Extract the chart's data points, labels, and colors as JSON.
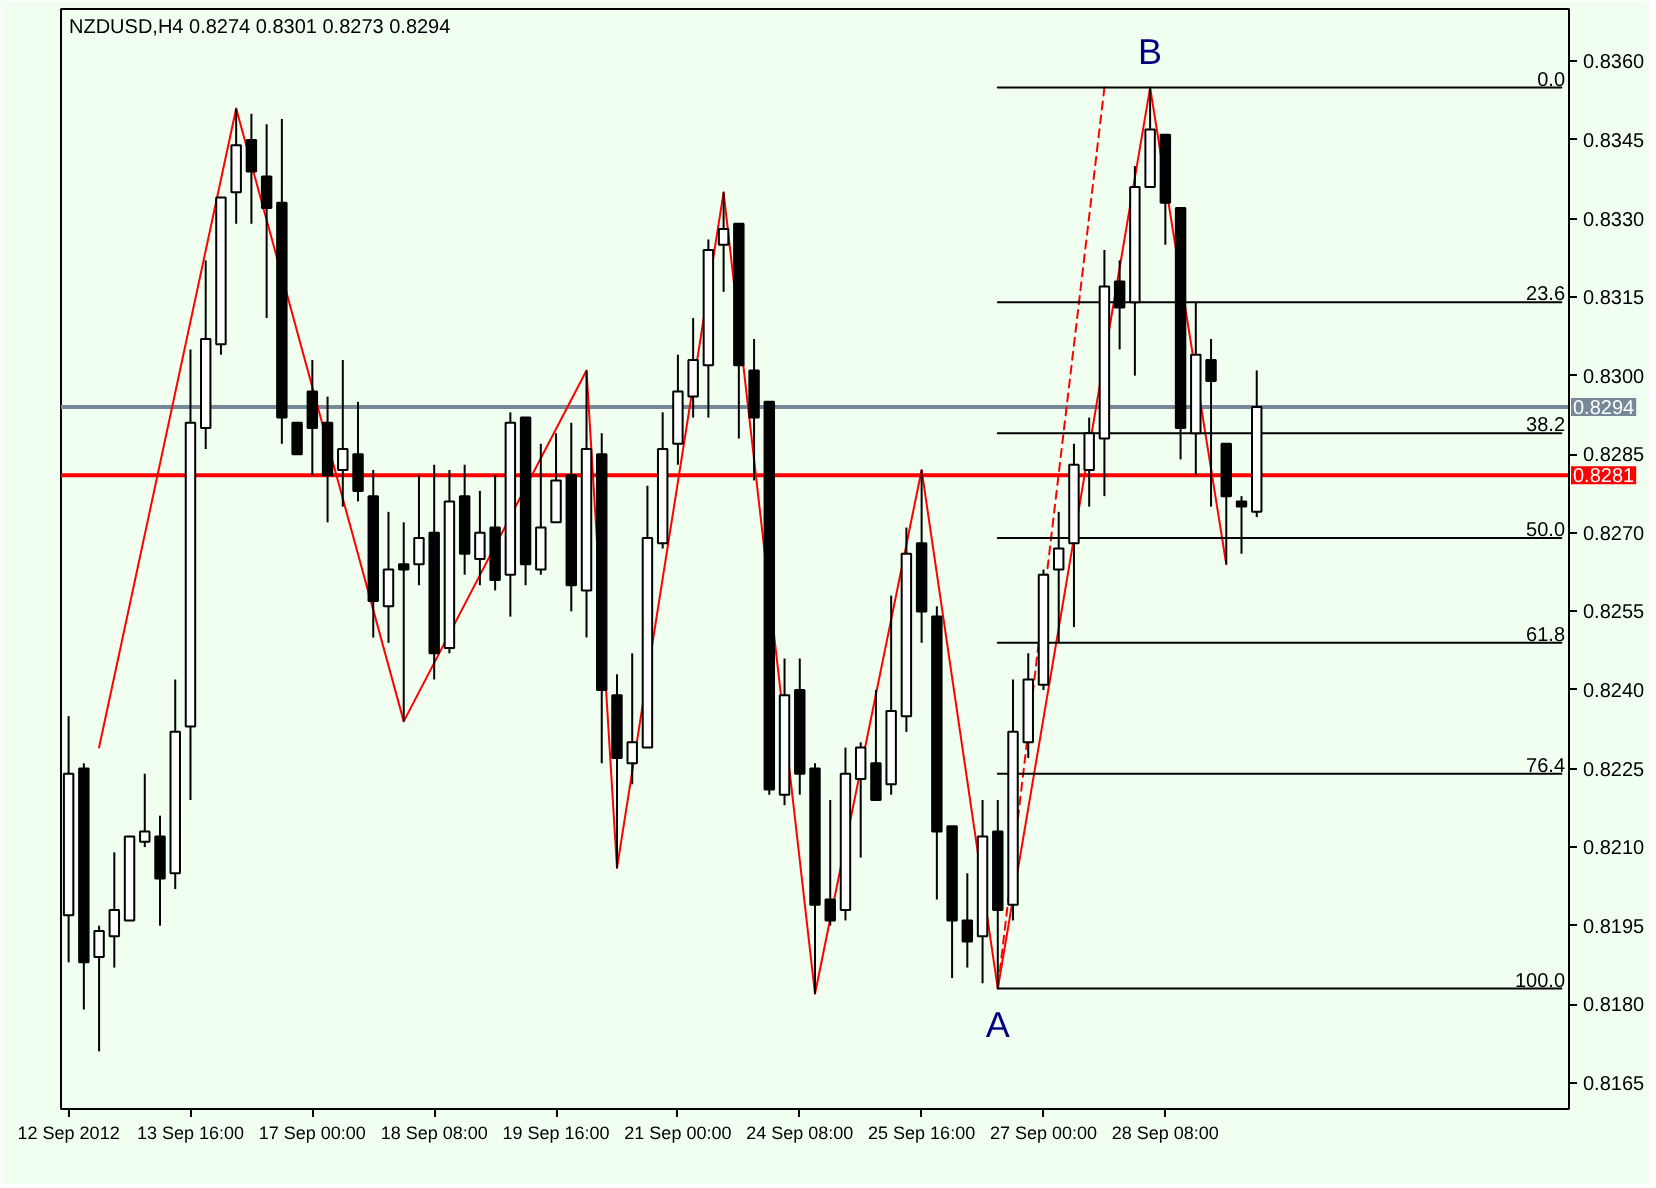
{
  "chart_data": {
    "type": "candlestick",
    "title": "NZDUSD,H4 0.8274 0.8301 0.8273 0.8294",
    "categories": [
      "12 Sep 2012",
      null,
      null,
      null,
      null,
      null,
      null,
      null,
      "13 Sep 16:00",
      null,
      null,
      null,
      null,
      null,
      null,
      null,
      "17 Sep 00:00",
      null,
      null,
      null,
      null,
      null,
      null,
      null,
      "18 Sep 08:00",
      null,
      null,
      null,
      null,
      null,
      null,
      null,
      "19 Sep 16:00",
      null,
      null,
      null,
      null,
      null,
      null,
      null,
      "21 Sep 00:00",
      null,
      null,
      null,
      null,
      null,
      null,
      null,
      "24 Sep 08:00",
      null,
      null,
      null,
      null,
      null,
      null,
      null,
      "25 Sep 16:00",
      null,
      null,
      null,
      null,
      null,
      null,
      null,
      "27 Sep 00:00",
      null,
      null,
      null,
      null,
      null,
      null,
      null,
      "28 Sep 08:00",
      null,
      null,
      null,
      null,
      null,
      null,
      null,
      null,
      null,
      null,
      null,
      null,
      null,
      null,
      null,
      null,
      null,
      null,
      null,
      null,
      null,
      null,
      null,
      null,
      null,
      null
    ],
    "ohlc": [
      [
        0.8197,
        0.8235,
        0.8188,
        0.8224
      ],
      [
        0.8225,
        0.8226,
        0.8179,
        0.8188
      ],
      [
        0.8189,
        0.8195,
        0.8171,
        0.8194
      ],
      [
        0.8193,
        0.8209,
        0.8187,
        0.8198
      ],
      [
        0.8196,
        0.8212,
        0.8196,
        0.8212
      ],
      [
        0.8211,
        0.8224,
        0.821,
        0.8213
      ],
      [
        0.8212,
        0.8216,
        0.8195,
        0.8204
      ],
      [
        0.8205,
        0.8242,
        0.8202,
        0.8232
      ],
      [
        0.8233,
        0.8305,
        0.8219,
        0.8291
      ],
      [
        0.829,
        0.8322,
        0.8286,
        0.8307
      ],
      [
        0.8306,
        0.8334,
        0.8304,
        0.8334
      ],
      [
        0.8335,
        0.8351,
        0.8329,
        0.8344
      ],
      [
        0.8345,
        0.835,
        0.8329,
        0.8339
      ],
      [
        0.8338,
        0.8348,
        0.8311,
        0.8332
      ],
      [
        0.8333,
        0.8349,
        0.8287,
        0.8292
      ],
      [
        0.8291,
        0.8291,
        0.8285,
        0.8285
      ],
      [
        0.8297,
        0.8303,
        0.8281,
        0.829
      ],
      [
        0.8291,
        0.8296,
        0.8272,
        0.8281
      ],
      [
        0.8282,
        0.8303,
        0.8275,
        0.8286
      ],
      [
        0.8285,
        0.8295,
        0.8276,
        0.8278
      ],
      [
        0.8277,
        0.8282,
        0.825,
        0.8257
      ],
      [
        0.8256,
        0.8274,
        0.8249,
        0.8263
      ],
      [
        0.8264,
        0.8272,
        0.8234,
        0.8263
      ],
      [
        0.8264,
        0.8281,
        0.826,
        0.8269
      ],
      [
        0.827,
        0.8283,
        0.8242,
        0.8247
      ],
      [
        0.8248,
        0.8282,
        0.8247,
        0.8276
      ],
      [
        0.8277,
        0.8283,
        0.8262,
        0.8266
      ],
      [
        0.8265,
        0.8278,
        0.826,
        0.827
      ],
      [
        0.8271,
        0.8281,
        0.8259,
        0.8261
      ],
      [
        0.8262,
        0.8293,
        0.8254,
        0.8291
      ],
      [
        0.8292,
        0.8292,
        0.826,
        0.8264
      ],
      [
        0.8263,
        0.8287,
        0.8262,
        0.8271
      ],
      [
        0.8272,
        0.8289,
        0.8272,
        0.828
      ],
      [
        0.8281,
        0.8291,
        0.8255,
        0.826
      ],
      [
        0.8259,
        0.8301,
        0.825,
        0.8286
      ],
      [
        0.8285,
        0.8289,
        0.8226,
        0.824
      ],
      [
        0.8239,
        0.8243,
        0.8206,
        0.8227
      ],
      [
        0.8226,
        0.8247,
        0.8222,
        0.823
      ],
      [
        0.8229,
        0.8279,
        0.8229,
        0.8269
      ],
      [
        0.8268,
        0.8293,
        0.8267,
        0.8286
      ],
      [
        0.8287,
        0.8304,
        0.8283,
        0.8297
      ],
      [
        0.8296,
        0.8311,
        0.8292,
        0.8303
      ],
      [
        0.8302,
        0.8326,
        0.8292,
        0.8324
      ],
      [
        0.8325,
        0.8335,
        0.8316,
        0.8328
      ],
      [
        0.8329,
        0.8329,
        0.8288,
        0.8302
      ],
      [
        0.8301,
        0.8307,
        0.828,
        0.8292
      ],
      [
        0.8295,
        0.8295,
        0.822,
        0.8221
      ],
      [
        0.822,
        0.8246,
        0.8218,
        0.8239
      ],
      [
        0.824,
        0.8246,
        0.822,
        0.8224
      ],
      [
        0.8225,
        0.8226,
        0.8182,
        0.8199
      ],
      [
        0.82,
        0.8219,
        0.8195,
        0.8196
      ],
      [
        0.8198,
        0.8229,
        0.8196,
        0.8224
      ],
      [
        0.8223,
        0.823,
        0.8208,
        0.8229
      ],
      [
        0.8226,
        0.824,
        0.8219,
        0.8219
      ],
      [
        0.8222,
        0.8258,
        0.822,
        0.8236
      ],
      [
        0.8235,
        0.8271,
        0.8232,
        0.8266
      ],
      [
        0.8268,
        0.8282,
        0.8249,
        0.8255
      ],
      [
        0.8254,
        0.8256,
        0.82,
        0.8213
      ],
      [
        0.8214,
        0.8214,
        0.8185,
        0.8196
      ],
      [
        0.8196,
        0.8205,
        0.8187,
        0.8192
      ],
      [
        0.8193,
        0.8219,
        0.8184,
        0.8212
      ],
      [
        0.8213,
        0.8219,
        0.8183,
        0.8198
      ],
      [
        0.8199,
        0.8242,
        0.8196,
        0.8232
      ],
      [
        0.823,
        0.8247,
        0.8227,
        0.8242
      ],
      [
        0.8241,
        0.8263,
        0.824,
        0.8262
      ],
      [
        0.8263,
        0.8274,
        0.8249,
        0.8267
      ],
      [
        0.8268,
        0.8287,
        0.8252,
        0.8283
      ],
      [
        0.8282,
        0.8292,
        0.8275,
        0.8289
      ],
      [
        0.8288,
        0.8324,
        0.8277,
        0.8317
      ],
      [
        0.8318,
        0.8322,
        0.8305,
        0.8313
      ],
      [
        0.8314,
        0.834,
        0.83,
        0.8336
      ],
      [
        0.8336,
        0.8355,
        0.8336,
        0.8347
      ],
      [
        0.8346,
        0.8346,
        0.8325,
        0.8333
      ],
      [
        0.8332,
        0.8332,
        0.8284,
        0.829
      ],
      [
        0.8289,
        0.8314,
        0.8281,
        0.8304
      ],
      [
        0.8303,
        0.8307,
        0.8275,
        0.8299
      ],
      [
        0.8287,
        0.8287,
        0.8264,
        0.8277
      ],
      [
        0.8276,
        0.8277,
        0.8266,
        0.8275
      ],
      [
        0.8274,
        0.8301,
        0.8273,
        0.8294
      ],
      null,
      null,
      null,
      null,
      null,
      null,
      null,
      null,
      null,
      null,
      null,
      null,
      null,
      null,
      null,
      null,
      null,
      null,
      null,
      null
    ],
    "ylim": [
      0.816,
      0.837
    ],
    "yticks": [
      {
        "value": 0.8165,
        "label": "0.8165"
      },
      {
        "value": 0.818,
        "label": "0.8180"
      },
      {
        "value": 0.8195,
        "label": "0.8195"
      },
      {
        "value": 0.821,
        "label": "0.8210"
      },
      {
        "value": 0.8225,
        "label": "0.8225"
      },
      {
        "value": 0.824,
        "label": "0.8240"
      },
      {
        "value": 0.8255,
        "label": "0.8255"
      },
      {
        "value": 0.827,
        "label": "0.8270"
      },
      {
        "value": 0.8285,
        "label": "0.8285"
      },
      {
        "value": 0.83,
        "label": "0.8300"
      },
      {
        "value": 0.8315,
        "label": "0.8315"
      },
      {
        "value": 0.833,
        "label": "0.8330"
      },
      {
        "value": 0.8345,
        "label": "0.8345"
      },
      {
        "value": 0.836,
        "label": "0.8360"
      }
    ],
    "legend": "right",
    "series": [
      {
        "type": "line",
        "color": "#ff0000",
        "values": [
          null,
          null,
          0.8229,
          null,
          null,
          null,
          null,
          null,
          null,
          null,
          null,
          0.8351,
          null,
          null,
          null,
          null,
          null,
          null,
          null,
          null,
          null,
          null,
          0.8234,
          null,
          null,
          null,
          null,
          null,
          null,
          null,
          null,
          null,
          null,
          null,
          0.8301,
          null,
          0.8206,
          null,
          null,
          null,
          null,
          null,
          null,
          0.8335,
          null,
          null,
          null,
          null,
          null,
          0.8182,
          null,
          null,
          null,
          null,
          null,
          null,
          0.8282,
          null,
          null,
          null,
          null,
          0.8183,
          null,
          null,
          null,
          null,
          null,
          null,
          null,
          null,
          null,
          0.8355,
          null,
          null,
          null,
          null,
          0.8264,
          null,
          null,
          null,
          null,
          null,
          null,
          null,
          null,
          null,
          null,
          null,
          null,
          null,
          null,
          null,
          null,
          null,
          null,
          null,
          null,
          null,
          null
        ]
      },
      {
        "type": "line",
        "color": "#ff0000",
        "line_style": "dashed",
        "values": [
          null,
          null,
          null,
          null,
          null,
          null,
          null,
          null,
          null,
          null,
          null,
          null,
          null,
          null,
          null,
          null,
          null,
          null,
          null,
          null,
          null,
          null,
          null,
          null,
          null,
          null,
          null,
          null,
          null,
          null,
          null,
          null,
          null,
          null,
          null,
          null,
          null,
          null,
          null,
          null,
          null,
          null,
          null,
          null,
          null,
          null,
          null,
          null,
          null,
          null,
          null,
          null,
          null,
          null,
          null,
          null,
          null,
          null,
          null,
          null,
          null,
          0.8183,
          null,
          null,
          null,
          null,
          null,
          null,
          0.8355,
          null,
          null,
          null,
          null,
          null,
          null,
          null,
          null,
          null,
          null,
          null,
          null,
          null,
          null,
          null,
          null,
          null,
          null,
          null,
          null,
          null,
          null,
          null,
          null,
          null,
          null,
          null,
          null,
          null,
          null
        ]
      },
      {
        "type": "line",
        "name": "0.0",
        "color": "#000000",
        "values": [
          null,
          null,
          null,
          null,
          null,
          null,
          null,
          null,
          null,
          null,
          null,
          null,
          null,
          null,
          null,
          null,
          null,
          null,
          null,
          null,
          null,
          null,
          null,
          null,
          null,
          null,
          null,
          null,
          null,
          null,
          null,
          null,
          null,
          null,
          null,
          null,
          null,
          null,
          null,
          null,
          null,
          null,
          null,
          null,
          null,
          null,
          null,
          null,
          null,
          null,
          null,
          null,
          null,
          null,
          null,
          null,
          null,
          null,
          null,
          null,
          null,
          0.8355,
          0.8355,
          0.8355,
          0.8355,
          0.8355,
          0.8355,
          0.8355,
          0.8355,
          0.8355,
          0.8355,
          0.8355,
          0.8355,
          0.8355,
          0.8355,
          0.8355,
          0.8355,
          0.8355,
          0.8355,
          0.8355,
          0.8355,
          0.8355,
          0.8355,
          0.8355,
          0.8355,
          0.8355,
          0.8355,
          0.8355,
          0.8355,
          0.8355,
          0.8355,
          0.8355,
          0.8355,
          0.8355,
          0.8355,
          0.8355,
          0.8355,
          0.8355,
          0.8355
        ]
      },
      {
        "type": "line",
        "name": "23.6",
        "color": "#000000",
        "values": [
          null,
          null,
          null,
          null,
          null,
          null,
          null,
          null,
          null,
          null,
          null,
          null,
          null,
          null,
          null,
          null,
          null,
          null,
          null,
          null,
          null,
          null,
          null,
          null,
          null,
          null,
          null,
          null,
          null,
          null,
          null,
          null,
          null,
          null,
          null,
          null,
          null,
          null,
          null,
          null,
          null,
          null,
          null,
          null,
          null,
          null,
          null,
          null,
          null,
          null,
          null,
          null,
          null,
          null,
          null,
          null,
          null,
          null,
          null,
          null,
          null,
          0.8314,
          0.8314,
          0.8314,
          0.8314,
          0.8314,
          0.8314,
          0.8314,
          0.8314,
          0.8314,
          0.8314,
          0.8314,
          0.8314,
          0.8314,
          0.8314,
          0.8314,
          0.8314,
          0.8314,
          0.8314,
          0.8314,
          0.8314,
          0.8314,
          0.8314,
          0.8314,
          0.8314,
          0.8314,
          0.8314,
          0.8314,
          0.8314,
          0.8314,
          0.8314,
          0.8314,
          0.8314,
          0.8314,
          0.8314,
          0.8314,
          0.8314,
          0.8314,
          0.8314
        ]
      },
      {
        "type": "line",
        "name": "38.2",
        "color": "#000000",
        "values": [
          null,
          null,
          null,
          null,
          null,
          null,
          null,
          null,
          null,
          null,
          null,
          null,
          null,
          null,
          null,
          null,
          null,
          null,
          null,
          null,
          null,
          null,
          null,
          null,
          null,
          null,
          null,
          null,
          null,
          null,
          null,
          null,
          null,
          null,
          null,
          null,
          null,
          null,
          null,
          null,
          null,
          null,
          null,
          null,
          null,
          null,
          null,
          null,
          null,
          null,
          null,
          null,
          null,
          null,
          null,
          null,
          null,
          null,
          null,
          null,
          null,
          0.8289,
          0.8289,
          0.8289,
          0.8289,
          0.8289,
          0.8289,
          0.8289,
          0.8289,
          0.8289,
          0.8289,
          0.8289,
          0.8289,
          0.8289,
          0.8289,
          0.8289,
          0.8289,
          0.8289,
          0.8289,
          0.8289,
          0.8289,
          0.8289,
          0.8289,
          0.8289,
          0.8289,
          0.8289,
          0.8289,
          0.8289,
          0.8289,
          0.8289,
          0.8289,
          0.8289,
          0.8289,
          0.8289,
          0.8289,
          0.8289,
          0.8289,
          0.8289,
          0.8289
        ]
      },
      {
        "type": "line",
        "name": "50.0",
        "color": "#000000",
        "values": [
          null,
          null,
          null,
          null,
          null,
          null,
          null,
          null,
          null,
          null,
          null,
          null,
          null,
          null,
          null,
          null,
          null,
          null,
          null,
          null,
          null,
          null,
          null,
          null,
          null,
          null,
          null,
          null,
          null,
          null,
          null,
          null,
          null,
          null,
          null,
          null,
          null,
          null,
          null,
          null,
          null,
          null,
          null,
          null,
          null,
          null,
          null,
          null,
          null,
          null,
          null,
          null,
          null,
          null,
          null,
          null,
          null,
          null,
          null,
          null,
          null,
          0.8269,
          0.8269,
          0.8269,
          0.8269,
          0.8269,
          0.8269,
          0.8269,
          0.8269,
          0.8269,
          0.8269,
          0.8269,
          0.8269,
          0.8269,
          0.8269,
          0.8269,
          0.8269,
          0.8269,
          0.8269,
          0.8269,
          0.8269,
          0.8269,
          0.8269,
          0.8269,
          0.8269,
          0.8269,
          0.8269,
          0.8269,
          0.8269,
          0.8269,
          0.8269,
          0.8269,
          0.8269,
          0.8269,
          0.8269,
          0.8269,
          0.8269,
          0.8269,
          0.8269
        ]
      },
      {
        "type": "line",
        "name": "61.8",
        "color": "#000000",
        "values": [
          null,
          null,
          null,
          null,
          null,
          null,
          null,
          null,
          null,
          null,
          null,
          null,
          null,
          null,
          null,
          null,
          null,
          null,
          null,
          null,
          null,
          null,
          null,
          null,
          null,
          null,
          null,
          null,
          null,
          null,
          null,
          null,
          null,
          null,
          null,
          null,
          null,
          null,
          null,
          null,
          null,
          null,
          null,
          null,
          null,
          null,
          null,
          null,
          null,
          null,
          null,
          null,
          null,
          null,
          null,
          null,
          null,
          null,
          null,
          null,
          null,
          0.8249,
          0.8249,
          0.8249,
          0.8249,
          0.8249,
          0.8249,
          0.8249,
          0.8249,
          0.8249,
          0.8249,
          0.8249,
          0.8249,
          0.8249,
          0.8249,
          0.8249,
          0.8249,
          0.8249,
          0.8249,
          0.8249,
          0.8249,
          0.8249,
          0.8249,
          0.8249,
          0.8249,
          0.8249,
          0.8249,
          0.8249,
          0.8249,
          0.8249,
          0.8249,
          0.8249,
          0.8249,
          0.8249,
          0.8249,
          0.8249,
          0.8249,
          0.8249,
          0.8249
        ]
      },
      {
        "type": "line",
        "name": "76.4",
        "color": "#000000",
        "values": [
          null,
          null,
          null,
          null,
          null,
          null,
          null,
          null,
          null,
          null,
          null,
          null,
          null,
          null,
          null,
          null,
          null,
          null,
          null,
          null,
          null,
          null,
          null,
          null,
          null,
          null,
          null,
          null,
          null,
          null,
          null,
          null,
          null,
          null,
          null,
          null,
          null,
          null,
          null,
          null,
          null,
          null,
          null,
          null,
          null,
          null,
          null,
          null,
          null,
          null,
          null,
          null,
          null,
          null,
          null,
          null,
          null,
          null,
          null,
          null,
          null,
          0.8224,
          0.8224,
          0.8224,
          0.8224,
          0.8224,
          0.8224,
          0.8224,
          0.8224,
          0.8224,
          0.8224,
          0.8224,
          0.8224,
          0.8224,
          0.8224,
          0.8224,
          0.8224,
          0.8224,
          0.8224,
          0.8224,
          0.8224,
          0.8224,
          0.8224,
          0.8224,
          0.8224,
          0.8224,
          0.8224,
          0.8224,
          0.8224,
          0.8224,
          0.8224,
          0.8224,
          0.8224,
          0.8224,
          0.8224,
          0.8224,
          0.8224,
          0.8224,
          0.8224
        ]
      },
      {
        "type": "line",
        "name": "100.0",
        "color": "#000000",
        "values": [
          null,
          null,
          null,
          null,
          null,
          null,
          null,
          null,
          null,
          null,
          null,
          null,
          null,
          null,
          null,
          null,
          null,
          null,
          null,
          null,
          null,
          null,
          null,
          null,
          null,
          null,
          null,
          null,
          null,
          null,
          null,
          null,
          null,
          null,
          null,
          null,
          null,
          null,
          null,
          null,
          null,
          null,
          null,
          null,
          null,
          null,
          null,
          null,
          null,
          null,
          null,
          null,
          null,
          null,
          null,
          null,
          null,
          null,
          null,
          null,
          null,
          0.8183,
          0.8183,
          0.8183,
          0.8183,
          0.8183,
          0.8183,
          0.8183,
          0.8183,
          0.8183,
          0.8183,
          0.8183,
          0.8183,
          0.8183,
          0.8183,
          0.8183,
          0.8183,
          0.8183,
          0.8183,
          0.8183,
          0.8183,
          0.8183,
          0.8183,
          0.8183,
          0.8183,
          0.8183,
          0.8183,
          0.8183,
          0.8183,
          0.8183,
          0.8183,
          0.8183,
          0.8183,
          0.8183,
          0.8183,
          0.8183,
          0.8183,
          0.8183,
          0.8183
        ]
      }
    ],
    "ref_lines": [
      {
        "axis": "y",
        "value": 0.8294,
        "label": "0.8294",
        "color": "#778899"
      },
      {
        "axis": "y",
        "value": 0.8281,
        "label": "0.8281",
        "color": "#ff0000"
      }
    ],
    "annotations": [
      {
        "text": "A",
        "y": 0.8183
      },
      {
        "text": "B",
        "y": 0.8355
      }
    ]
  }
}
